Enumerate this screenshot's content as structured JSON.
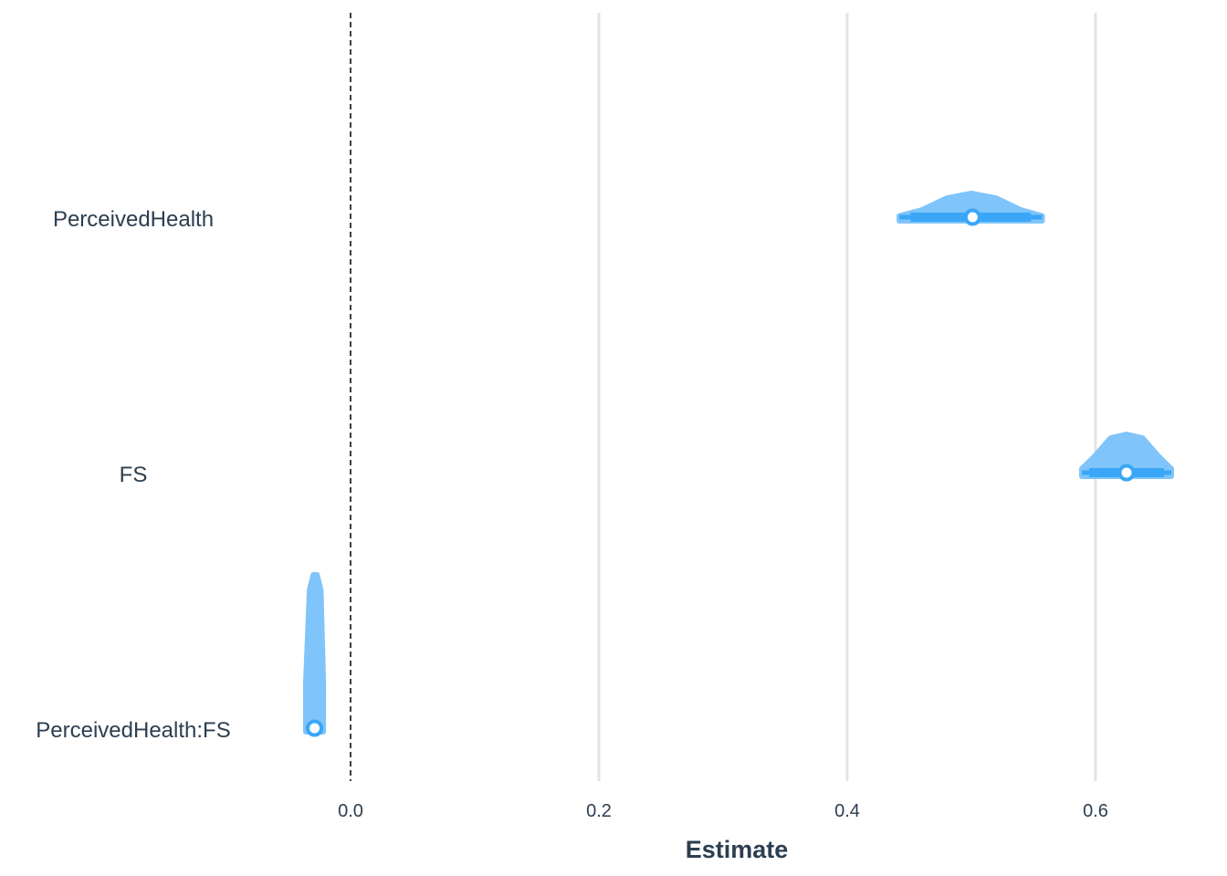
{
  "chart_data": {
    "type": "ridgeline",
    "title": "",
    "xlabel": "Estimate",
    "ylabel": "",
    "xlim": [
      -0.18,
      0.665
    ],
    "xticks": [
      0.0,
      0.2,
      0.4,
      0.6
    ],
    "xtick_labels": [
      "0.0",
      "0.2",
      "0.4",
      "0.6"
    ],
    "grid": "vertical major gridlines",
    "reference_line": {
      "x": 0.0,
      "style": "dashed"
    },
    "colors": {
      "density_fill": "#7fc4fa",
      "interval": "#3aa6f7",
      "point_stroke": "#3aa6f7",
      "point_fill": "#ffffff",
      "grid": "#e3e3e3",
      "text": "#2c3e50",
      "reference_line": "#111111"
    },
    "parameters": [
      {
        "name": "PerceivedHealth",
        "estimate": 0.501,
        "ci_inner": [
          0.451,
          0.548
        ],
        "ci_outer": [
          0.442,
          0.557
        ],
        "density": {
          "x": [
            0.442,
            0.46,
            0.48,
            0.5,
            0.52,
            0.54,
            0.557
          ],
          "y": [
            0.05,
            0.3,
            0.8,
            1.0,
            0.8,
            0.3,
            0.05
          ]
        }
      },
      {
        "name": "FS",
        "estimate": 0.625,
        "ci_inner": [
          0.595,
          0.655
        ],
        "ci_outer": [
          0.589,
          0.661
        ],
        "density": {
          "x": [
            0.589,
            0.6,
            0.612,
            0.625,
            0.638,
            0.65,
            0.661
          ],
          "y": [
            0.1,
            0.45,
            0.9,
            1.0,
            0.9,
            0.45,
            0.1
          ]
        }
      },
      {
        "name": "PerceivedHealth:FS",
        "estimate": -0.029,
        "ci_inner": [
          -0.034,
          -0.024
        ],
        "ci_outer": [
          -0.036,
          -0.022
        ],
        "density": {
          "x": [
            -0.036,
            -0.033,
            -0.03,
            -0.027,
            -0.024,
            -0.022
          ],
          "y": [
            0.3,
            0.9,
            1.0,
            1.0,
            0.9,
            0.3
          ]
        }
      }
    ]
  }
}
